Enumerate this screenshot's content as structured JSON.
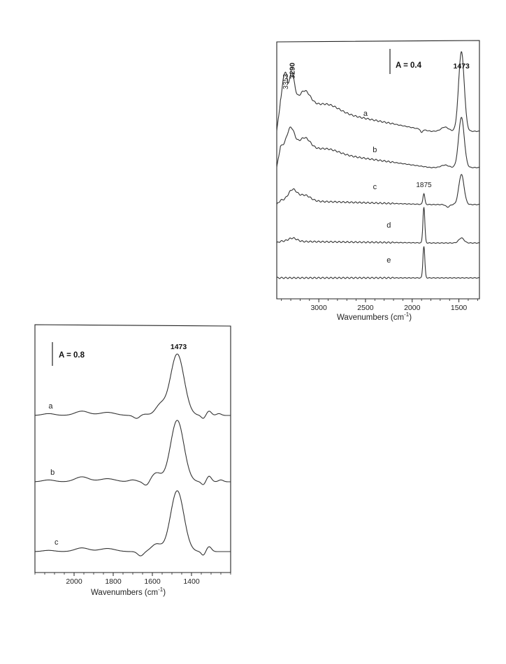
{
  "chart_data": [
    {
      "type": "line",
      "xlabel": "Wavenumbers  (cm",
      "xlabel_sup": "-1",
      "xlabel_end": ")",
      "xlim": [
        3450,
        1280
      ],
      "x_reversed": true,
      "xticks": [
        3000,
        2500,
        2000,
        1500
      ],
      "xtick_labels": [
        "3000",
        "2500",
        "2000",
        "1500"
      ],
      "scale_bar": "A = 0.4",
      "annotations": [
        {
          "text": "3353",
          "x": 3353,
          "bold": false
        },
        {
          "text": "3290",
          "x": 3290,
          "bold": true
        },
        {
          "text": "1473",
          "x": 1473,
          "bold": true
        },
        {
          "text": "1875",
          "x": 1875,
          "bold": false
        }
      ],
      "series": [
        {
          "name": "a",
          "label_x": 2500,
          "baseline": 0.0,
          "slope": 0.35,
          "peaks": [
            [
              3380,
              0.22,
              14
            ],
            [
              3353,
              0.28,
              16
            ],
            [
              3290,
              0.36,
              30
            ],
            [
              3150,
              0.18,
              60
            ],
            [
              2900,
              0.08,
              120
            ],
            [
              1473,
              0.95,
              30
            ],
            [
              1650,
              0.05,
              40
            ],
            [
              1900,
              -0.04,
              10
            ]
          ]
        },
        {
          "name": "b",
          "label_x": 2400,
          "baseline": 0.0,
          "slope": 0.25,
          "peaks": [
            [
              3300,
              0.24,
              40
            ],
            [
              3150,
              0.14,
              60
            ],
            [
              2900,
              0.05,
              120
            ],
            [
              1473,
              0.6,
              30
            ],
            [
              1650,
              0.03,
              40
            ]
          ]
        },
        {
          "name": "c",
          "label_x": 2400,
          "baseline": 0.0,
          "slope": 0.05,
          "peaks": [
            [
              3280,
              0.13,
              45
            ],
            [
              3150,
              0.07,
              60
            ],
            [
              1875,
              0.13,
              10
            ],
            [
              1473,
              0.36,
              28
            ],
            [
              1620,
              -0.03,
              20
            ]
          ]
        },
        {
          "name": "d",
          "label_x": 2250,
          "baseline": 0.0,
          "slope": 0.02,
          "peaks": [
            [
              3280,
              0.04,
              45
            ],
            [
              1875,
              0.43,
              10
            ],
            [
              1473,
              0.06,
              28
            ]
          ]
        },
        {
          "name": "e",
          "label_x": 2250,
          "baseline": 0.0,
          "slope": 0.0,
          "peaks": [
            [
              1875,
              0.38,
              10
            ]
          ]
        }
      ]
    },
    {
      "type": "line",
      "xlabel": "Wavenumbers (cm",
      "xlabel_sup": "-1",
      "xlabel_end": ")",
      "xlim": [
        2200,
        1200
      ],
      "x_reversed": true,
      "xticks": [
        2000,
        1800,
        1600,
        1400
      ],
      "xtick_labels": [
        "2000",
        "1800",
        "1600",
        "1400"
      ],
      "scale_bar": "A = 0.8",
      "annotations": [
        {
          "text": "1473",
          "x": 1473,
          "bold": true
        }
      ],
      "series": [
        {
          "name": "a",
          "label_x": 2120,
          "peaks": [
            [
              2130,
              0.03,
              30
            ],
            [
              1960,
              0.07,
              35
            ],
            [
              1830,
              0.05,
              40
            ],
            [
              1640,
              0.02,
              20
            ],
            [
              1560,
              0.16,
              25
            ],
            [
              1473,
              1.0,
              35
            ],
            [
              1310,
              0.07,
              12
            ],
            [
              1260,
              0.03,
              12
            ]
          ],
          "dips": [
            [
              1680,
              0.05,
              15
            ],
            [
              1340,
              0.05,
              10
            ]
          ]
        },
        {
          "name": "b",
          "label_x": 2110,
          "peaks": [
            [
              2130,
              0.03,
              30
            ],
            [
              1960,
              0.08,
              35
            ],
            [
              1830,
              0.05,
              40
            ],
            [
              1700,
              0.03,
              20
            ],
            [
              1580,
              0.14,
              25
            ],
            [
              1473,
              1.0,
              34
            ],
            [
              1310,
              0.09,
              12
            ],
            [
              1250,
              0.03,
              12
            ]
          ],
          "dips": [
            [
              1630,
              0.07,
              15
            ],
            [
              1340,
              0.05,
              10
            ]
          ]
        },
        {
          "name": "c",
          "label_x": 2090,
          "peaks": [
            [
              2130,
              0.02,
              30
            ],
            [
              1960,
              0.06,
              35
            ],
            [
              1830,
              0.05,
              40
            ],
            [
              1580,
              0.12,
              25
            ],
            [
              1473,
              0.99,
              34
            ],
            [
              1310,
              0.08,
              12
            ]
          ],
          "dips": [
            [
              1660,
              0.07,
              15
            ],
            [
              1340,
              0.06,
              10
            ]
          ]
        }
      ]
    }
  ]
}
